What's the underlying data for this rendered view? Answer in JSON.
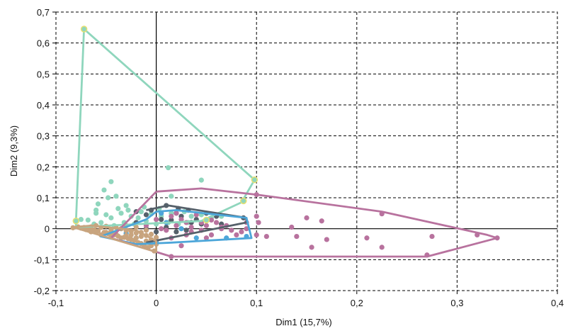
{
  "chart_data": {
    "type": "scatter",
    "title": "",
    "xlabel": "Dim1 (15,7%)",
    "ylabel": "Dim2 (9,3%)",
    "xlim": [
      -0.1,
      0.4
    ],
    "ylim": [
      -0.2,
      0.7
    ],
    "xticks": [
      -0.1,
      0,
      0.1,
      0.2,
      0.3,
      0.4
    ],
    "xtick_labels": [
      "-0,1",
      "0",
      "0,1",
      "0,2",
      "0,3",
      "0,4"
    ],
    "yticks": [
      -0.2,
      -0.1,
      0,
      0.1,
      0.2,
      0.3,
      0.4,
      0.5,
      0.6,
      0.7
    ],
    "ytick_labels": [
      "-0,2",
      "-0,1",
      "0",
      "0,1",
      "0,2",
      "0,3",
      "0,4",
      "0,5",
      "0,6",
      "0,7"
    ],
    "grid": true,
    "gridline_style": "dashed",
    "legend": "none",
    "series": [
      {
        "color": "#8fd6bd",
        "hull": [
          [
            -0.072,
            0.645
          ],
          [
            0.098,
            0.158
          ],
          [
            0.085,
            0.085
          ],
          [
            0.045,
            0.025
          ],
          [
            -0.08,
            0.005
          ],
          [
            -0.08,
            0.025
          ],
          [
            -0.072,
            0.645
          ]
        ],
        "highlight": [
          [
            -0.072,
            0.645
          ],
          [
            0.098,
            0.158
          ],
          [
            -0.08,
            0.025
          ],
          [
            0.087,
            0.09
          ],
          [
            0.05,
            0.028
          ]
        ],
        "points": [
          [
            0.012,
            0.197
          ],
          [
            0.045,
            0.157
          ],
          [
            -0.045,
            0.152
          ],
          [
            -0.052,
            0.125
          ],
          [
            -0.048,
            0.1
          ],
          [
            -0.04,
            0.105
          ],
          [
            -0.058,
            0.08
          ],
          [
            -0.03,
            0.075
          ],
          [
            -0.012,
            0.07
          ],
          [
            0.015,
            0.105
          ],
          [
            -0.06,
            0.05
          ],
          [
            -0.05,
            0.045
          ],
          [
            -0.045,
            0.035
          ],
          [
            -0.035,
            0.05
          ],
          [
            -0.025,
            0.04
          ],
          [
            -0.015,
            0.055
          ],
          [
            -0.005,
            0.048
          ],
          [
            0.005,
            0.04
          ],
          [
            0.015,
            0.05
          ],
          [
            0.025,
            0.03
          ],
          [
            0.035,
            0.04
          ],
          [
            0.045,
            0.045
          ],
          [
            0.055,
            0.035
          ],
          [
            0.065,
            0.04
          ],
          [
            -0.068,
            0.028
          ],
          [
            -0.062,
            0.015
          ],
          [
            -0.055,
            0.02
          ],
          [
            -0.042,
            0.01
          ],
          [
            -0.032,
            0.02
          ],
          [
            -0.022,
            0.015
          ],
          [
            -0.01,
            0.025
          ],
          [
            0.0,
            0.015
          ],
          [
            0.012,
            0.02
          ],
          [
            0.022,
            0.015
          ],
          [
            0.032,
            0.02
          ],
          [
            -0.07,
            0.0
          ],
          [
            -0.065,
            -0.005
          ],
          [
            -0.045,
            -0.005
          ],
          [
            -0.035,
            0.0
          ],
          [
            -0.028,
            0.06
          ],
          [
            -0.018,
            0.035
          ],
          [
            0.028,
            0.055
          ],
          [
            -0.075,
            0.03
          ],
          [
            -0.06,
            0.06
          ],
          [
            -0.038,
            0.065
          ],
          [
            0.003,
            0.065
          ]
        ]
      },
      {
        "color": "#55606a",
        "hull": [
          [
            -0.01,
            0.06
          ],
          [
            0.012,
            0.075
          ],
          [
            0.09,
            0.035
          ],
          [
            0.09,
            0.02
          ],
          [
            -0.01,
            -0.045
          ]
        ],
        "points": [
          [
            0.01,
            0.075
          ],
          [
            0.022,
            0.065
          ],
          [
            0.032,
            0.06
          ],
          [
            0.05,
            0.05
          ],
          [
            0.06,
            0.04
          ],
          [
            0.087,
            0.035
          ],
          [
            -0.02,
            0.055
          ],
          [
            -0.01,
            0.045
          ],
          [
            0.005,
            0.03
          ],
          [
            0.015,
            0.028
          ],
          [
            0.025,
            0.04
          ],
          [
            0.035,
            0.02
          ],
          [
            0.04,
            0.03
          ],
          [
            -0.02,
            0.02
          ],
          [
            -0.01,
            0.0
          ],
          [
            0.0,
            -0.01
          ],
          [
            0.01,
            0.005
          ],
          [
            0.02,
            -0.01
          ],
          [
            -0.03,
            0.01
          ],
          [
            0.045,
            0.015
          ],
          [
            0.065,
            0.015
          ],
          [
            0.02,
            0.05
          ],
          [
            0.03,
            -0.005
          ],
          [
            -0.005,
            0.06
          ]
        ]
      },
      {
        "color": "#4da6d9",
        "hull": [
          [
            0.0,
            0.055
          ],
          [
            0.02,
            0.06
          ],
          [
            0.09,
            0.035
          ],
          [
            0.095,
            -0.03
          ],
          [
            0.015,
            -0.045
          ],
          [
            -0.02,
            -0.05
          ],
          [
            -0.055,
            -0.025
          ],
          [
            -0.01,
            0.03
          ],
          [
            0.0,
            0.055
          ]
        ],
        "points": [
          [
            0.005,
            0.05
          ],
          [
            0.01,
            0.02
          ],
          [
            -0.02,
            -0.03
          ],
          [
            -0.03,
            -0.015
          ],
          [
            0.0,
            -0.04
          ],
          [
            0.04,
            -0.03
          ],
          [
            0.07,
            -0.03
          ],
          [
            0.09,
            -0.025
          ],
          [
            0.025,
            0.0
          ]
        ]
      },
      {
        "color": "#b8729e",
        "hull": [
          [
            0.0,
            0.12
          ],
          [
            0.045,
            0.13
          ],
          [
            0.1,
            0.11
          ],
          [
            0.225,
            0.055
          ],
          [
            0.33,
            -0.02
          ],
          [
            0.34,
            -0.03
          ],
          [
            0.27,
            -0.09
          ],
          [
            0.015,
            -0.09
          ],
          [
            -0.045,
            -0.03
          ],
          [
            0.0,
            0.12
          ]
        ],
        "points": [
          [
            0.1,
            0.11
          ],
          [
            0.225,
            0.048
          ],
          [
            0.15,
            0.035
          ],
          [
            0.165,
            0.025
          ],
          [
            0.102,
            0.02
          ],
          [
            0.135,
            0.005
          ],
          [
            0.09,
            0.0
          ],
          [
            0.075,
            -0.005
          ],
          [
            0.065,
            0.005
          ],
          [
            0.085,
            -0.01
          ],
          [
            0.1,
            -0.02
          ],
          [
            0.11,
            -0.025
          ],
          [
            0.14,
            -0.025
          ],
          [
            0.17,
            -0.035
          ],
          [
            0.21,
            -0.03
          ],
          [
            0.275,
            -0.025
          ],
          [
            0.32,
            -0.02
          ],
          [
            0.34,
            -0.03
          ],
          [
            0.155,
            -0.06
          ],
          [
            0.225,
            -0.06
          ],
          [
            0.27,
            -0.085
          ],
          [
            0.015,
            -0.09
          ],
          [
            0.025,
            -0.055
          ],
          [
            0.015,
            -0.03
          ],
          [
            0.03,
            -0.02
          ],
          [
            0.045,
            -0.005
          ],
          [
            0.03,
            0.02
          ],
          [
            0.02,
            0.01
          ],
          [
            0.05,
            0.01
          ],
          [
            0.055,
            0.028
          ],
          [
            0.02,
            0.05
          ],
          [
            0.04,
            0.045
          ],
          [
            0.06,
            0.02
          ],
          [
            0.0,
            0.03
          ],
          [
            0.01,
            -0.005
          ],
          [
            0.035,
            -0.01
          ],
          [
            0.1,
            0.04
          ],
          [
            0.09,
            0.02
          ],
          [
            0.055,
            -0.02
          ],
          [
            -0.01,
            0.01
          ],
          [
            0.005,
            0.0
          ],
          [
            0.025,
            0.03
          ],
          [
            0.065,
            0.0
          ],
          [
            0.015,
            0.04
          ],
          [
            0.045,
            0.02
          ],
          [
            0.07,
            0.01
          ],
          [
            0.035,
            0.005
          ],
          [
            0.08,
            -0.02
          ],
          [
            0.05,
            -0.03
          ]
        ]
      },
      {
        "color": "#c8a47e",
        "hull": [
          [
            -0.083,
            0.005
          ],
          [
            -0.065,
            0.01
          ],
          [
            -0.02,
            -0.005
          ],
          [
            0.0,
            -0.04
          ],
          [
            0.0,
            -0.075
          ],
          [
            -0.083,
            0.005
          ]
        ],
        "points": [
          [
            -0.083,
            0.003
          ],
          [
            -0.075,
            0.002
          ],
          [
            -0.07,
            -0.003
          ],
          [
            -0.065,
            0.006
          ],
          [
            -0.06,
            -0.008
          ],
          [
            -0.055,
            0.004
          ],
          [
            -0.05,
            -0.012
          ],
          [
            -0.045,
            -0.002
          ],
          [
            -0.04,
            -0.018
          ],
          [
            -0.035,
            0.0
          ],
          [
            -0.03,
            -0.022
          ],
          [
            -0.025,
            -0.008
          ],
          [
            -0.02,
            -0.03
          ],
          [
            -0.015,
            -0.012
          ],
          [
            -0.01,
            -0.04
          ],
          [
            -0.005,
            -0.018
          ],
          [
            0.0,
            -0.05
          ],
          [
            -0.002,
            -0.072
          ],
          [
            -0.008,
            -0.06
          ],
          [
            -0.012,
            -0.055
          ],
          [
            -0.018,
            -0.045
          ],
          [
            -0.022,
            -0.038
          ],
          [
            -0.028,
            -0.032
          ],
          [
            -0.032,
            -0.028
          ],
          [
            -0.038,
            -0.024
          ],
          [
            -0.042,
            -0.02
          ],
          [
            -0.048,
            -0.016
          ],
          [
            -0.052,
            -0.012
          ],
          [
            -0.058,
            -0.008
          ],
          [
            -0.062,
            -0.004
          ],
          [
            -0.068,
            0.0
          ],
          [
            -0.072,
            0.004
          ],
          [
            -0.078,
            0.006
          ],
          [
            -0.055,
            -0.02
          ],
          [
            -0.045,
            -0.025
          ],
          [
            -0.035,
            -0.03
          ],
          [
            -0.025,
            -0.035
          ],
          [
            -0.015,
            -0.048
          ],
          [
            -0.005,
            -0.055
          ],
          [
            -0.06,
            0.01
          ],
          [
            -0.05,
            0.008
          ],
          [
            -0.04,
            0.004
          ],
          [
            -0.03,
            -0.006
          ],
          [
            -0.02,
            -0.014
          ],
          [
            -0.01,
            -0.022
          ],
          [
            0.0,
            -0.028
          ],
          [
            -0.065,
            -0.01
          ],
          [
            -0.045,
            -0.01
          ],
          [
            -0.025,
            -0.02
          ],
          [
            -0.015,
            -0.025
          ],
          [
            -0.005,
            -0.035
          ],
          [
            -0.03,
            0.01
          ],
          [
            -0.02,
            0.005
          ],
          [
            -0.01,
            -0.005
          ]
        ]
      }
    ]
  }
}
